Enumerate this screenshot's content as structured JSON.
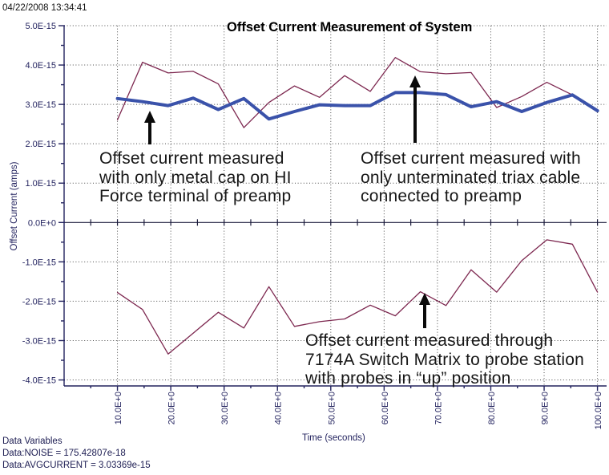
{
  "window": {
    "timestamp": "04/22/2008 13:34:41"
  },
  "chart_data": {
    "type": "line",
    "title": "Offset Current Measurement of System",
    "xlabel": "Time (seconds)",
    "ylabel": "Offset Current (amps)",
    "grid": "dotted",
    "y_unit_scale": "1e-15 amps",
    "xlim": [
      0,
      101.6
    ],
    "ylim": [
      -4.17,
      5.03
    ],
    "x_tick_labels": [
      "10.0E+0",
      "20.0E+0",
      "30.0E+0",
      "40.0E+0",
      "50.0E+0",
      "60.0E+0",
      "70.0E+0",
      "80.0E+0",
      "90.0E+0",
      "100.0E+0"
    ],
    "x_tick_values": [
      10,
      20,
      30,
      40,
      50,
      60,
      70,
      80,
      90,
      100
    ],
    "y_tick_labels": [
      "5.0E-15",
      "4.0E-15",
      "3.0E-15",
      "2.0E-15",
      "1.0E-15",
      "0.0E+0",
      "-1.0E-15",
      "-2.0E-15",
      "-3.0E-15",
      "-4.0E-15"
    ],
    "y_tick_values": [
      5,
      4,
      3,
      2,
      1,
      0,
      -1,
      -2,
      -3,
      -4
    ],
    "x": [
      10,
      14.7,
      19.5,
      24.2,
      28.9,
      33.7,
      38.4,
      43.2,
      47.9,
      52.6,
      57.4,
      62.1,
      66.8,
      71.6,
      76.3,
      81.1,
      85.8,
      90.5,
      95.3,
      100
    ],
    "series": [
      {
        "name": "triax-cable",
        "description": "Offset current with only unterminated triax cable connected to preamp",
        "color": "#7d2850",
        "width": 1.3,
        "y": [
          2.61,
          4.07,
          3.8,
          3.84,
          3.52,
          2.41,
          3.05,
          3.47,
          3.18,
          3.73,
          3.33,
          4.19,
          3.83,
          3.78,
          3.81,
          2.92,
          3.2,
          3.56,
          3.24,
          2.84
        ]
      },
      {
        "name": "switch-matrix",
        "description": "Offset current through 7174A Switch Matrix to probe station, probes up",
        "color": "#7d2850",
        "width": 1.3,
        "y": [
          -1.78,
          -2.21,
          -3.34,
          -2.81,
          -2.28,
          -2.68,
          -1.63,
          -2.64,
          -2.52,
          -2.45,
          -2.1,
          -2.37,
          -1.76,
          -2.11,
          -1.2,
          -1.77,
          -0.97,
          -0.44,
          -0.55,
          -1.77
        ]
      },
      {
        "name": "metal-cap",
        "description": "Offset current with only metal cap on HI Force terminal of preamp",
        "color": "#3a52aa",
        "width": 4,
        "y": [
          3.15,
          3.07,
          2.97,
          3.16,
          2.87,
          3.15,
          2.63,
          2.82,
          2.99,
          2.97,
          2.97,
          3.3,
          3.3,
          3.25,
          2.94,
          3.07,
          2.82,
          3.05,
          3.24,
          2.84
        ]
      }
    ]
  },
  "annotations": [
    {
      "id": "metal-cap",
      "lines": [
        "Offset current measured",
        "with only metal cap on HI",
        "Force terminal of preamp"
      ]
    },
    {
      "id": "triax",
      "lines": [
        "Offset current measured with",
        "only unterminated triax cable",
        "connected to preamp"
      ]
    },
    {
      "id": "switch-matrix",
      "lines": [
        "Offset current measured through",
        "7174A Switch Matrix to probe station",
        "with probes in “up” position"
      ]
    }
  ],
  "footer": {
    "lines": [
      "Data Variables",
      "Data:NOISE = 175.42807e-18",
      "Data:AVGCURRENT = 3.03369e-15"
    ]
  }
}
